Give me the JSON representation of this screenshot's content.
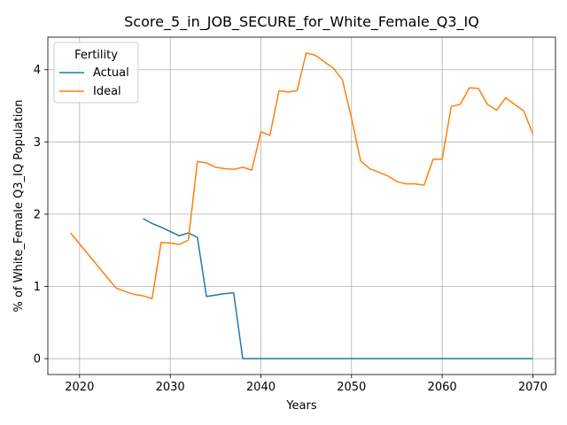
{
  "chart_data": {
    "type": "line",
    "title": "Score_5_in_JOB_SECURE_for_White_Female_Q3_IQ",
    "xlabel": "Years",
    "ylabel": "% of White_Female Q3_IQ Population",
    "xlim": [
      2016.5,
      2072.5
    ],
    "ylim": [
      -0.22,
      4.45
    ],
    "xticks": [
      2020,
      2030,
      2040,
      2050,
      2060,
      2070
    ],
    "yticks": [
      0,
      1,
      2,
      3,
      4
    ],
    "grid": true,
    "legend": {
      "title": "Fertility",
      "placement": "top-left"
    },
    "series": [
      {
        "name": "Actual",
        "color": "#1f77b4",
        "x": [
          2027,
          2028,
          2029,
          2030,
          2031,
          2032,
          2033,
          2034,
          2035,
          2036,
          2037,
          2038,
          2039,
          2040,
          2045,
          2050,
          2055,
          2060,
          2065,
          2070
        ],
        "y": [
          1.94,
          1.87,
          1.82,
          1.76,
          1.7,
          1.74,
          1.68,
          0.86,
          0.88,
          0.9,
          0.91,
          0.0,
          0.0,
          0.0,
          0.0,
          0.0,
          0.0,
          0.0,
          0.0,
          0.0
        ]
      },
      {
        "name": "Ideal",
        "color": "#ff7f0e",
        "x": [
          2019,
          2024,
          2025,
          2026,
          2027,
          2028,
          2029,
          2030,
          2031,
          2032,
          2033,
          2034,
          2035,
          2036,
          2037,
          2038,
          2039,
          2040,
          2041,
          2042,
          2043,
          2044,
          2045,
          2046,
          2047,
          2048,
          2049,
          2050,
          2051,
          2052,
          2053,
          2054,
          2055,
          2056,
          2057,
          2058,
          2059,
          2060,
          2061,
          2062,
          2063,
          2064,
          2065,
          2066,
          2067,
          2068,
          2069,
          2070
        ],
        "y": [
          1.74,
          0.98,
          0.93,
          0.89,
          0.87,
          0.83,
          1.61,
          1.6,
          1.58,
          1.64,
          2.73,
          2.71,
          2.65,
          2.63,
          2.62,
          2.65,
          2.61,
          3.14,
          3.09,
          3.71,
          3.69,
          3.71,
          4.23,
          4.2,
          4.11,
          4.02,
          3.86,
          3.33,
          2.74,
          2.63,
          2.58,
          2.53,
          2.45,
          2.42,
          2.42,
          2.4,
          2.76,
          2.76,
          3.49,
          3.52,
          3.75,
          3.74,
          3.52,
          3.44,
          3.61,
          3.52,
          3.43,
          3.11
        ]
      }
    ]
  }
}
